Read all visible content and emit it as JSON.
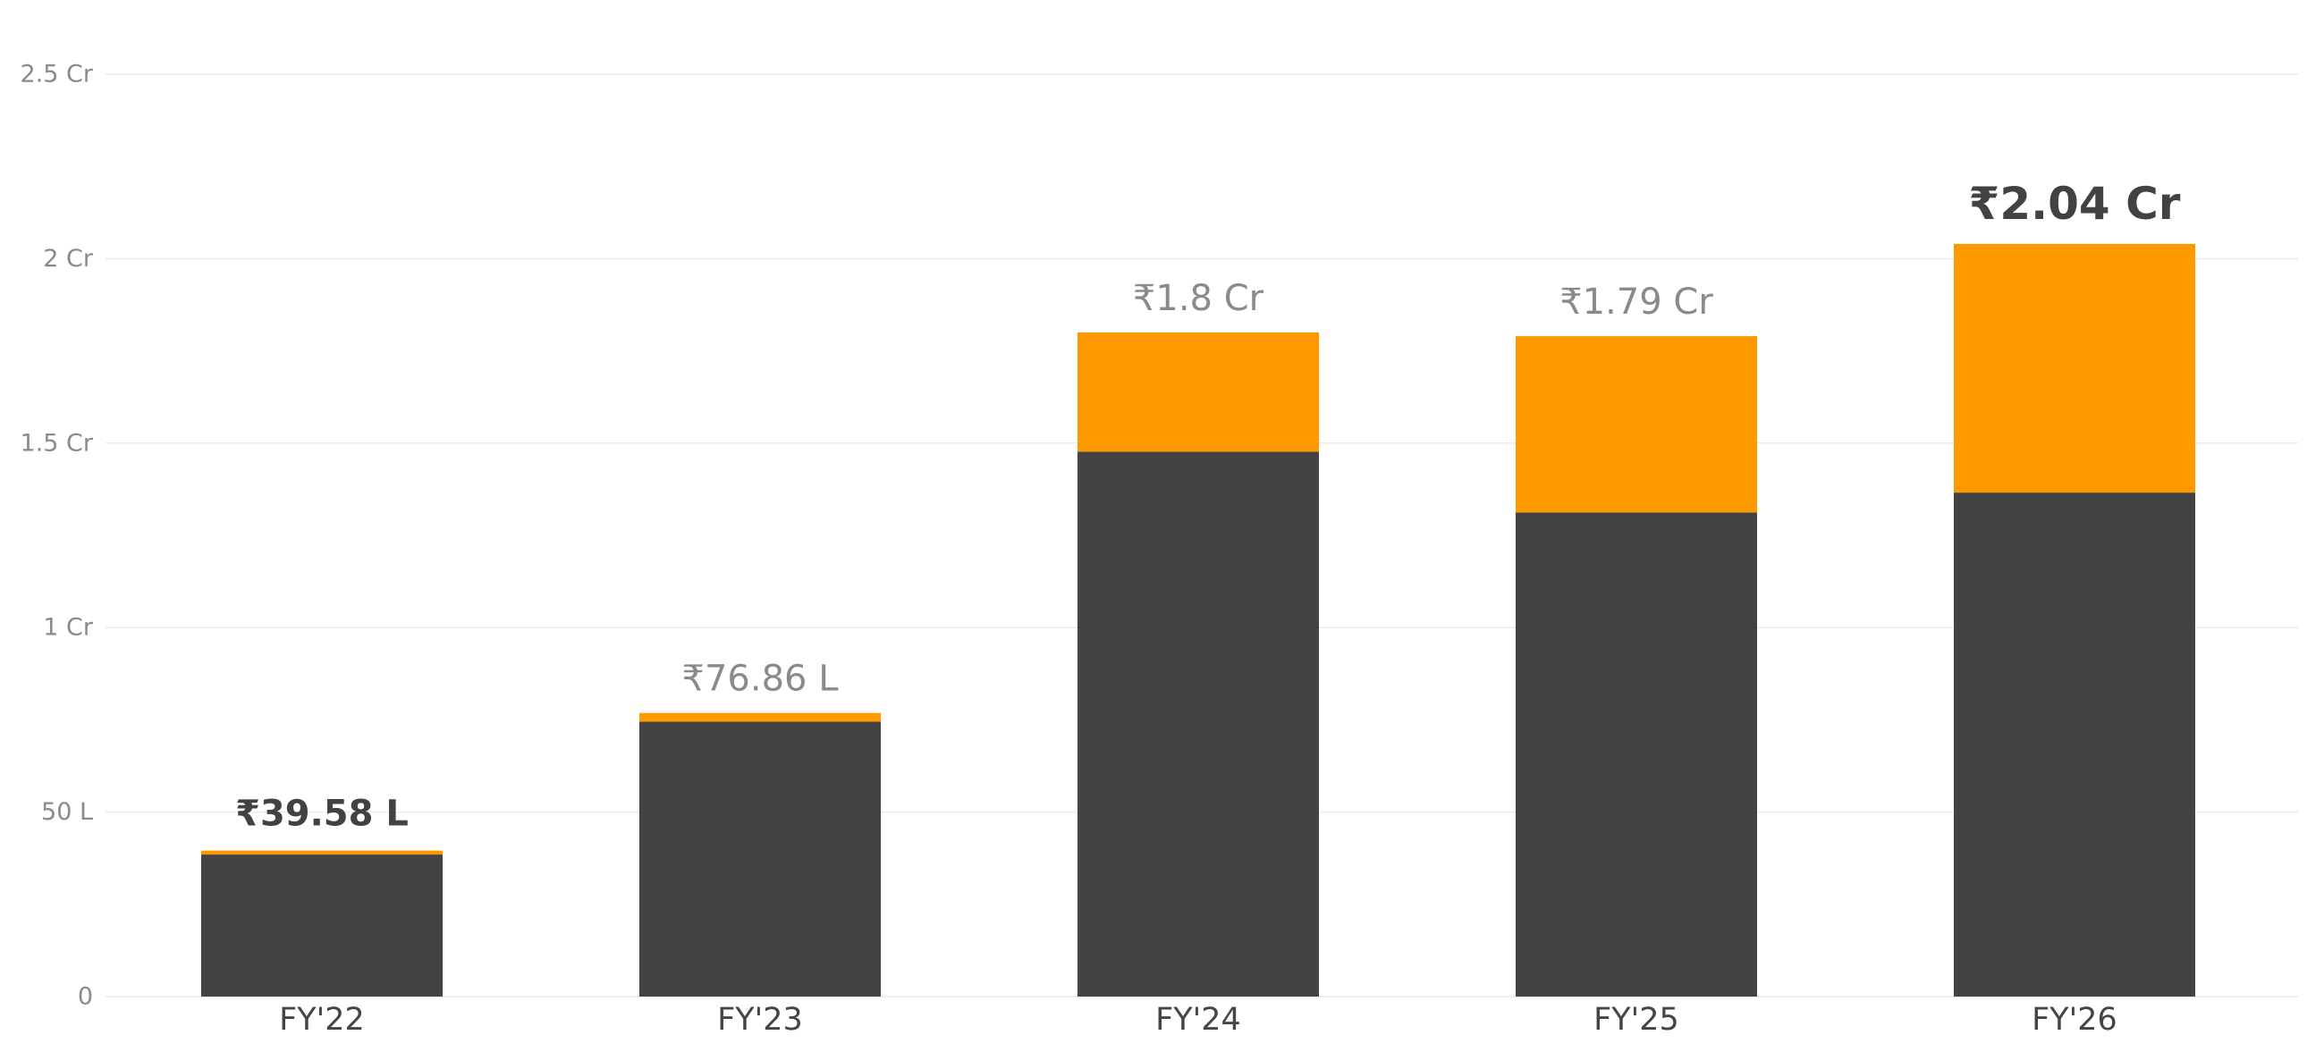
{
  "chart_data": {
    "type": "bar",
    "stacked": true,
    "categories": [
      "FY'22",
      "FY'23",
      "FY'24",
      "FY'25",
      "FY'26"
    ],
    "series": [
      {
        "color": "#434343",
        "values": [
          0.385,
          0.745,
          1.477,
          1.312,
          1.366
        ]
      },
      {
        "color": "#FF9900",
        "values": [
          0.0108,
          0.0236,
          0.323,
          0.478,
          0.674
        ]
      }
    ],
    "totals": [
      {
        "text": "₹39.58 L",
        "emphasis": true
      },
      {
        "text": "₹76.86 L",
        "emphasis": false
      },
      {
        "text": "₹1.8 Cr",
        "emphasis": false
      },
      {
        "text": "₹1.79 Cr",
        "emphasis": false
      },
      {
        "text": "₹2.04 Cr",
        "emphasis": true
      }
    ],
    "y_ticks": [
      {
        "value": 0,
        "label": "0"
      },
      {
        "value": 0.5,
        "label": "50 L"
      },
      {
        "value": 1,
        "label": "1 Cr"
      },
      {
        "value": 1.5,
        "label": "1.5 Cr"
      },
      {
        "value": 2,
        "label": "2 Cr"
      },
      {
        "value": 2.5,
        "label": "2.5 Cr"
      }
    ],
    "ylim": [
      0,
      2.5
    ],
    "y_unit": "Cr",
    "grid": true,
    "legend": "none"
  }
}
